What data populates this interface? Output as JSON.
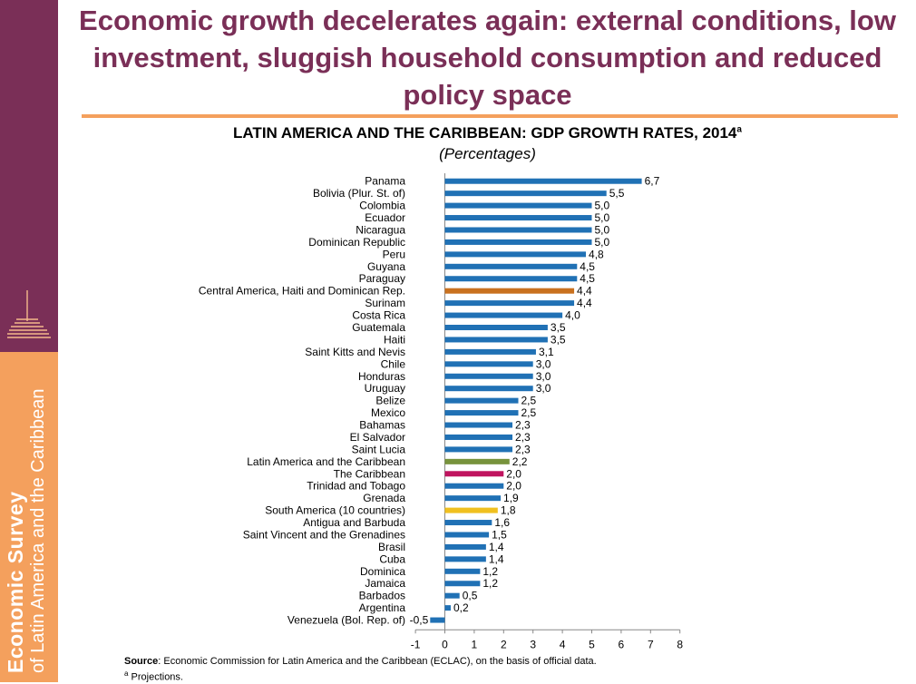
{
  "headline": "Economic growth decelerates again: external conditions, low investment, sluggish household consumption and reduced policy space",
  "sidebar": {
    "line1": "Economic Survey",
    "line2": "of Latin America and the Caribbean"
  },
  "colors": {
    "sidebar_top": "#7a2f57",
    "sidebar_bottom": "#f4a05d",
    "headline": "#7a2f57",
    "bar_default": "#2071b5",
    "bar_central_america": "#c9711f",
    "bar_latin_america": "#77933c",
    "bar_caribbean": "#c0145f",
    "bar_south_america": "#f0c020"
  },
  "chart_data": {
    "type": "bar",
    "orientation": "horizontal",
    "title": "LATIN AMERICA AND THE CARIBBEAN: GDP GROWTH RATES, 2014",
    "title_superscript": "a",
    "subtitle": "(Percentages)",
    "xlim": [
      -1,
      8
    ],
    "xticks": [
      "-1",
      "0",
      "1",
      "2",
      "3",
      "4",
      "5",
      "6",
      "7",
      "8"
    ],
    "grid": false,
    "bars": [
      {
        "label": "Panama",
        "value": 6.7,
        "value_label": "6,7",
        "color": "#2071b5"
      },
      {
        "label": "Bolivia (Plur. St. of)",
        "value": 5.5,
        "value_label": "5,5",
        "color": "#2071b5"
      },
      {
        "label": "Colombia",
        "value": 5.0,
        "value_label": "5,0",
        "color": "#2071b5"
      },
      {
        "label": "Ecuador",
        "value": 5.0,
        "value_label": "5,0",
        "color": "#2071b5"
      },
      {
        "label": "Nicaragua",
        "value": 5.0,
        "value_label": "5,0",
        "color": "#2071b5"
      },
      {
        "label": "Dominican Republic",
        "value": 5.0,
        "value_label": "5,0",
        "color": "#2071b5"
      },
      {
        "label": "Peru",
        "value": 4.8,
        "value_label": "4,8",
        "color": "#2071b5"
      },
      {
        "label": "Guyana",
        "value": 4.5,
        "value_label": "4,5",
        "color": "#2071b5"
      },
      {
        "label": "Paraguay",
        "value": 4.5,
        "value_label": "4,5",
        "color": "#2071b5"
      },
      {
        "label": "Central America, Haiti and Dominican Rep.",
        "value": 4.4,
        "value_label": "4,4",
        "color": "#c9711f"
      },
      {
        "label": "Surinam",
        "value": 4.4,
        "value_label": "4,4",
        "color": "#2071b5"
      },
      {
        "label": "Costa Rica",
        "value": 4.0,
        "value_label": "4,0",
        "color": "#2071b5"
      },
      {
        "label": "Guatemala",
        "value": 3.5,
        "value_label": "3,5",
        "color": "#2071b5"
      },
      {
        "label": "Haiti",
        "value": 3.5,
        "value_label": "3,5",
        "color": "#2071b5"
      },
      {
        "label": "Saint Kitts and Nevis",
        "value": 3.1,
        "value_label": "3,1",
        "color": "#2071b5"
      },
      {
        "label": "Chile",
        "value": 3.0,
        "value_label": "3,0",
        "color": "#2071b5"
      },
      {
        "label": "Honduras",
        "value": 3.0,
        "value_label": "3,0",
        "color": "#2071b5"
      },
      {
        "label": "Uruguay",
        "value": 3.0,
        "value_label": "3,0",
        "color": "#2071b5"
      },
      {
        "label": "Belize",
        "value": 2.5,
        "value_label": "2,5",
        "color": "#2071b5"
      },
      {
        "label": "Mexico",
        "value": 2.5,
        "value_label": "2,5",
        "color": "#2071b5"
      },
      {
        "label": "Bahamas",
        "value": 2.3,
        "value_label": "2,3",
        "color": "#2071b5"
      },
      {
        "label": "El Salvador",
        "value": 2.3,
        "value_label": "2,3",
        "color": "#2071b5"
      },
      {
        "label": "Saint Lucia",
        "value": 2.3,
        "value_label": "2,3",
        "color": "#2071b5"
      },
      {
        "label": "Latin America and the Caribbean",
        "value": 2.2,
        "value_label": "2,2",
        "color": "#77933c"
      },
      {
        "label": "The Caribbean",
        "value": 2.0,
        "value_label": "2,0",
        "color": "#c0145f"
      },
      {
        "label": "Trinidad and Tobago",
        "value": 2.0,
        "value_label": "2,0",
        "color": "#2071b5"
      },
      {
        "label": "Grenada",
        "value": 1.9,
        "value_label": "1,9",
        "color": "#2071b5"
      },
      {
        "label": "South America (10 countries)",
        "value": 1.8,
        "value_label": "1,8",
        "color": "#f0c020"
      },
      {
        "label": "Antigua and Barbuda",
        "value": 1.6,
        "value_label": "1,6",
        "color": "#2071b5"
      },
      {
        "label": "Saint Vincent and the Grenadines",
        "value": 1.5,
        "value_label": "1,5",
        "color": "#2071b5"
      },
      {
        "label": "Brasil",
        "value": 1.4,
        "value_label": "1,4",
        "color": "#2071b5"
      },
      {
        "label": "Cuba",
        "value": 1.4,
        "value_label": "1,4",
        "color": "#2071b5"
      },
      {
        "label": "Dominica",
        "value": 1.2,
        "value_label": "1,2",
        "color": "#2071b5"
      },
      {
        "label": "Jamaica",
        "value": 1.2,
        "value_label": "1,2",
        "color": "#2071b5"
      },
      {
        "label": "Barbados",
        "value": 0.5,
        "value_label": "0,5",
        "color": "#2071b5"
      },
      {
        "label": "Argentina",
        "value": 0.2,
        "value_label": "0,2",
        "color": "#2071b5"
      },
      {
        "label": "Venezuela (Bol. Rep. of)",
        "value": -0.5,
        "value_label": "-0,5",
        "color": "#2071b5"
      }
    ]
  },
  "source": {
    "label": "Source",
    "text": ": Economic Commission for Latin America and the Caribbean (ECLAC), on the basis of official data.",
    "footnote_mark": "a",
    "footnote": " Projections."
  }
}
